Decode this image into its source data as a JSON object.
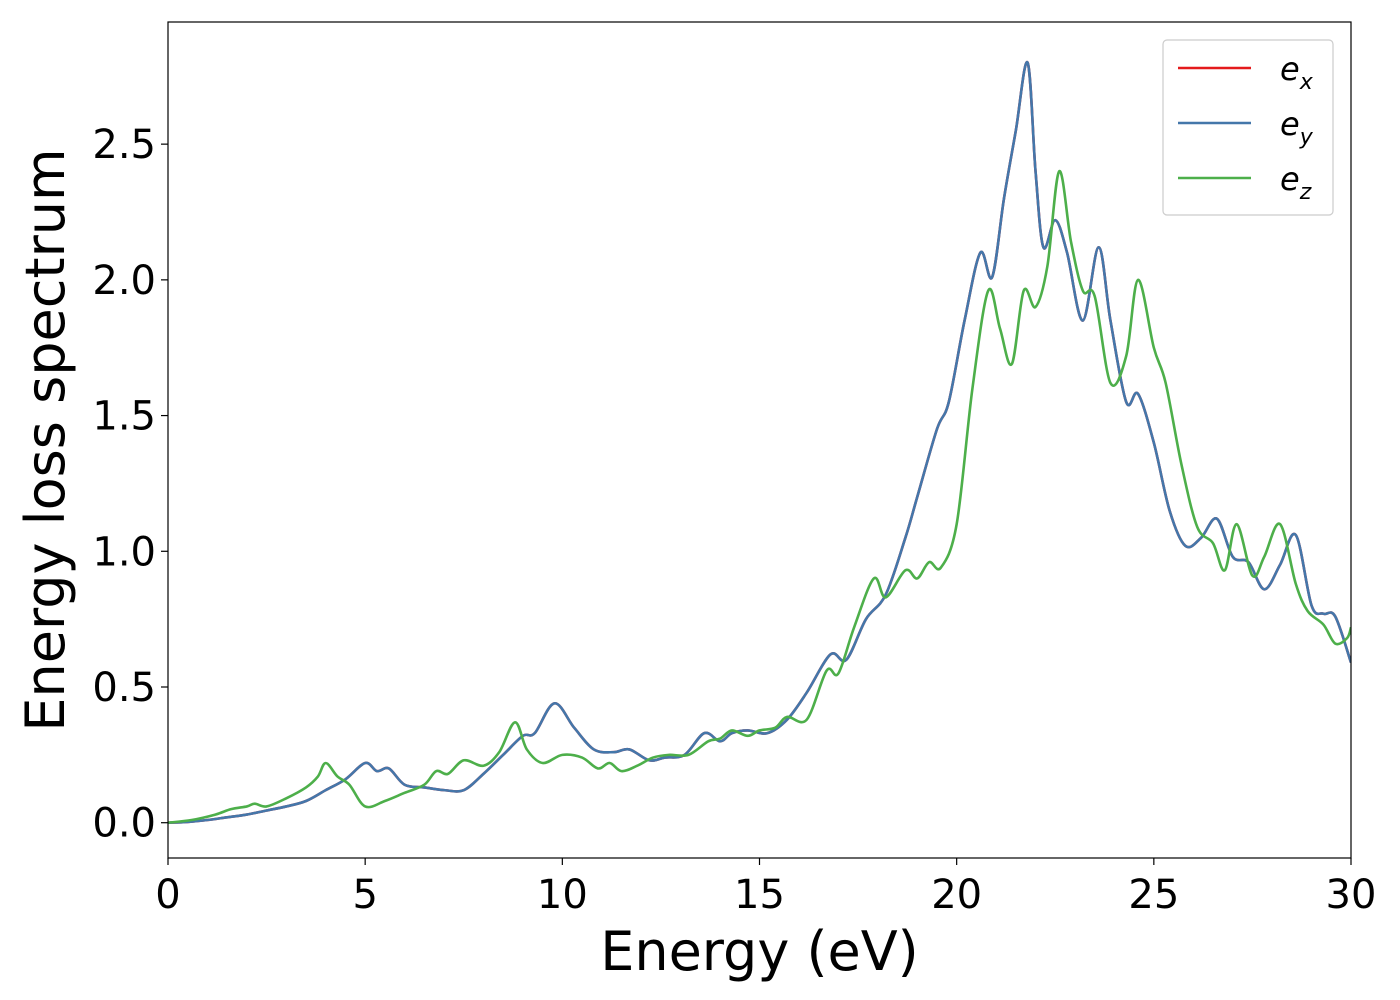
{
  "chart_data": {
    "type": "line",
    "title": "",
    "xlabel": "Energy (eV)",
    "ylabel": "Energy loss spectrum",
    "xlim": [
      0,
      30
    ],
    "ylim": [
      -0.13,
      2.95
    ],
    "xticks": [
      0,
      5,
      10,
      15,
      20,
      25,
      30
    ],
    "yticks": [
      0.0,
      0.5,
      1.0,
      1.5,
      2.0,
      2.5
    ],
    "xtick_labels": [
      "0",
      "5",
      "10",
      "15",
      "20",
      "25",
      "30"
    ],
    "ytick_labels": [
      "0.0",
      "0.5",
      "1.0",
      "1.5",
      "2.0",
      "2.5"
    ],
    "grid": false,
    "legend_position": "top-right",
    "series": [
      {
        "name": "e_x",
        "label_base": "e",
        "label_sub": "x",
        "color": "#e41a1c",
        "x": [
          0,
          0.5,
          1,
          1.5,
          2,
          2.5,
          3,
          3.5,
          4,
          4.5,
          5,
          5.3,
          5.6,
          6,
          6.5,
          7,
          7.5,
          8,
          8.5,
          9,
          9.3,
          9.8,
          10.3,
          10.8,
          11.3,
          11.7,
          12.2,
          12.6,
          13.1,
          13.6,
          14,
          14.3,
          14.7,
          15.2,
          15.7,
          16.2,
          16.8,
          17.2,
          17.7,
          18.2,
          18.7,
          19,
          19.5,
          19.8,
          20.2,
          20.6,
          20.9,
          21.2,
          21.5,
          21.8,
          22,
          22.2,
          22.5,
          22.8,
          23.2,
          23.6,
          23.9,
          24.3,
          24.6,
          25,
          25.4,
          25.8,
          26.2,
          26.6,
          27,
          27.4,
          27.8,
          28.2,
          28.6,
          29,
          29.3,
          29.6,
          30
        ],
        "y": [
          0,
          0.003,
          0.01,
          0.02,
          0.03,
          0.045,
          0.06,
          0.08,
          0.12,
          0.16,
          0.22,
          0.19,
          0.2,
          0.14,
          0.13,
          0.12,
          0.12,
          0.18,
          0.25,
          0.32,
          0.33,
          0.44,
          0.35,
          0.27,
          0.26,
          0.27,
          0.23,
          0.24,
          0.25,
          0.33,
          0.3,
          0.33,
          0.34,
          0.33,
          0.38,
          0.48,
          0.62,
          0.6,
          0.75,
          0.84,
          1.05,
          1.2,
          1.45,
          1.55,
          1.85,
          2.1,
          2.01,
          2.3,
          2.55,
          2.8,
          2.4,
          2.12,
          2.22,
          2.1,
          1.85,
          2.12,
          1.85,
          1.55,
          1.58,
          1.4,
          1.15,
          1.02,
          1.05,
          1.12,
          0.98,
          0.96,
          0.86,
          0.95,
          1.06,
          0.8,
          0.77,
          0.76,
          0.59
        ]
      },
      {
        "name": "e_y",
        "label_base": "e",
        "label_sub": "y",
        "color": "#4477aa",
        "x": [
          0,
          0.5,
          1,
          1.5,
          2,
          2.5,
          3,
          3.5,
          4,
          4.5,
          5,
          5.3,
          5.6,
          6,
          6.5,
          7,
          7.5,
          8,
          8.5,
          9,
          9.3,
          9.8,
          10.3,
          10.8,
          11.3,
          11.7,
          12.2,
          12.6,
          13.1,
          13.6,
          14,
          14.3,
          14.7,
          15.2,
          15.7,
          16.2,
          16.8,
          17.2,
          17.7,
          18.2,
          18.7,
          19,
          19.5,
          19.8,
          20.2,
          20.6,
          20.9,
          21.2,
          21.5,
          21.8,
          22,
          22.2,
          22.5,
          22.8,
          23.2,
          23.6,
          23.9,
          24.3,
          24.6,
          25,
          25.4,
          25.8,
          26.2,
          26.6,
          27,
          27.4,
          27.8,
          28.2,
          28.6,
          29,
          29.3,
          29.6,
          30
        ],
        "y": [
          0,
          0.003,
          0.01,
          0.02,
          0.03,
          0.045,
          0.06,
          0.08,
          0.12,
          0.16,
          0.22,
          0.19,
          0.2,
          0.14,
          0.13,
          0.12,
          0.12,
          0.18,
          0.25,
          0.32,
          0.33,
          0.44,
          0.35,
          0.27,
          0.26,
          0.27,
          0.23,
          0.24,
          0.25,
          0.33,
          0.3,
          0.33,
          0.34,
          0.33,
          0.38,
          0.48,
          0.62,
          0.6,
          0.75,
          0.84,
          1.05,
          1.2,
          1.45,
          1.55,
          1.85,
          2.1,
          2.01,
          2.3,
          2.55,
          2.8,
          2.4,
          2.12,
          2.22,
          2.1,
          1.85,
          2.12,
          1.85,
          1.55,
          1.58,
          1.4,
          1.15,
          1.02,
          1.05,
          1.12,
          0.98,
          0.96,
          0.86,
          0.95,
          1.06,
          0.8,
          0.77,
          0.76,
          0.59
        ]
      },
      {
        "name": "e_z",
        "label_base": "e",
        "label_sub": "z",
        "color": "#4daf4a",
        "x": [
          0,
          0.6,
          1.2,
          1.6,
          2,
          2.2,
          2.5,
          3,
          3.5,
          3.8,
          4,
          4.3,
          4.6,
          5,
          5.5,
          6,
          6.5,
          6.8,
          7.1,
          7.5,
          8,
          8.4,
          8.8,
          9.1,
          9.5,
          10,
          10.5,
          10.9,
          11.2,
          11.5,
          11.9,
          12.3,
          12.7,
          13.2,
          13.7,
          14,
          14.3,
          14.7,
          15,
          15.4,
          15.7,
          16.2,
          16.7,
          17,
          17.4,
          17.9,
          18.2,
          18.7,
          19,
          19.3,
          19.6,
          20,
          20.4,
          20.8,
          21.1,
          21.4,
          21.7,
          22,
          22.3,
          22.6,
          22.9,
          23.2,
          23.5,
          23.9,
          24.3,
          24.6,
          25,
          25.3,
          25.7,
          26.1,
          26.5,
          26.8,
          27.1,
          27.5,
          27.8,
          28.2,
          28.6,
          28.9,
          29.3,
          29.6,
          29.9,
          30
        ],
        "y": [
          0,
          0.01,
          0.03,
          0.05,
          0.06,
          0.07,
          0.06,
          0.09,
          0.13,
          0.17,
          0.22,
          0.17,
          0.14,
          0.06,
          0.08,
          0.11,
          0.14,
          0.19,
          0.18,
          0.23,
          0.21,
          0.26,
          0.37,
          0.27,
          0.22,
          0.25,
          0.24,
          0.2,
          0.22,
          0.19,
          0.21,
          0.24,
          0.25,
          0.25,
          0.3,
          0.31,
          0.34,
          0.32,
          0.34,
          0.35,
          0.39,
          0.38,
          0.56,
          0.55,
          0.72,
          0.9,
          0.83,
          0.93,
          0.9,
          0.96,
          0.94,
          1.1,
          1.6,
          1.96,
          1.82,
          1.69,
          1.96,
          1.9,
          2.05,
          2.4,
          2.14,
          1.96,
          1.94,
          1.62,
          1.72,
          2.0,
          1.75,
          1.62,
          1.32,
          1.09,
          1.03,
          0.93,
          1.1,
          0.91,
          0.98,
          1.1,
          0.88,
          0.78,
          0.73,
          0.66,
          0.68,
          0.72
        ]
      }
    ]
  }
}
